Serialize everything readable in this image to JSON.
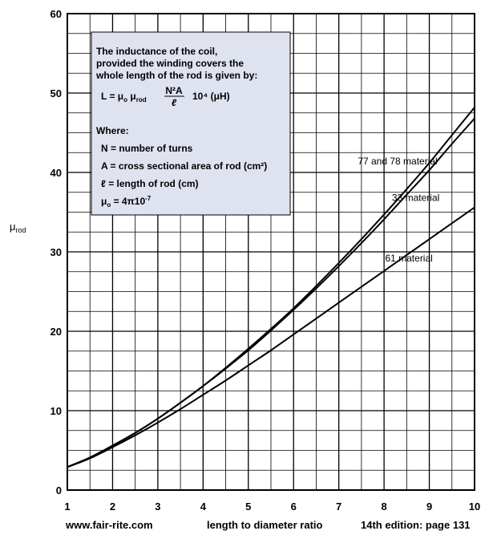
{
  "chart_data": {
    "type": "line",
    "title": "",
    "xlabel": "length to diameter ratio",
    "ylabel_main": "μ",
    "ylabel_sub": "rod",
    "xlim": [
      1,
      10
    ],
    "ylim": [
      0,
      60
    ],
    "x_ticks": [
      1,
      2,
      3,
      4,
      5,
      6,
      7,
      8,
      9,
      10
    ],
    "y_ticks": [
      0,
      10,
      20,
      30,
      40,
      50,
      60
    ],
    "grid": true,
    "series": [
      {
        "name": "77 and 78 material",
        "x": [
          1,
          1.5,
          2,
          2.5,
          3,
          3.5,
          4,
          4.5,
          5,
          5.5,
          6,
          6.5,
          7,
          7.5,
          8,
          8.5,
          9,
          9.5,
          10
        ],
        "y": [
          2.9,
          4.1,
          5.6,
          7.2,
          9.0,
          11.0,
          13.1,
          15.4,
          17.8,
          20.3,
          22.9,
          25.7,
          28.6,
          31.6,
          34.7,
          37.9,
          41.2,
          44.7,
          48.2
        ]
      },
      {
        "name": "33 material",
        "x": [
          1,
          1.5,
          2,
          2.5,
          3,
          3.5,
          4,
          4.5,
          5,
          5.5,
          6,
          6.5,
          7,
          7.5,
          8,
          8.5,
          9,
          9.5,
          10
        ],
        "y": [
          2.9,
          4.1,
          5.6,
          7.2,
          9.0,
          11.0,
          13.1,
          15.3,
          17.6,
          20.1,
          22.7,
          25.4,
          28.2,
          31.1,
          34.1,
          37.2,
          40.3,
          43.6,
          46.8
        ]
      },
      {
        "name": "61 material",
        "x": [
          1,
          1.5,
          2,
          2.5,
          3,
          3.5,
          4,
          4.5,
          5,
          5.5,
          6,
          6.5,
          7,
          7.5,
          8,
          8.5,
          9,
          9.5,
          10
        ],
        "y": [
          2.9,
          4.0,
          5.4,
          6.9,
          8.5,
          10.2,
          12.0,
          13.8,
          15.7,
          17.6,
          19.6,
          21.6,
          23.6,
          25.6,
          27.6,
          29.6,
          31.6,
          33.6,
          35.6
        ]
      }
    ],
    "curve_labels": [
      {
        "text": "77 and 78 material",
        "x": 8.3,
        "y": 41.0
      },
      {
        "text": "33 material",
        "x": 8.7,
        "y": 36.4
      },
      {
        "text": "61 material",
        "x": 8.55,
        "y": 28.8
      }
    ],
    "annotation": {
      "line1": "The inductance of the coil,",
      "line2": "provided the winding covers the",
      "line3": "whole length of the rod is given by:",
      "formula_lhs": "L = μ",
      "formula_mu_sub_o": "o",
      "formula_mu2": " μ",
      "formula_mu_sub_rod": "rod",
      "formula_numerator": "N²A",
      "formula_denominator": "ℓ",
      "formula_tail": "10⁴ (μH)",
      "where": "Where:",
      "def_n": "N  =  number of turns",
      "def_a": "A  =  cross sectional area of rod (cm²)",
      "def_l": "ℓ  =  length of rod (cm)",
      "def_mu0_lhs": "μ",
      "def_mu0_sub": "o",
      "def_mu0_rhs": " = 4π10",
      "def_mu0_exp": "-7"
    },
    "colors": {
      "annotation_bg": "#dfe3f0",
      "line": "#000000",
      "background": "#ffffff"
    }
  },
  "footer": {
    "left": "www.fair-rite.com",
    "center": "length to diameter ratio",
    "right": "14th edition: page 131"
  }
}
